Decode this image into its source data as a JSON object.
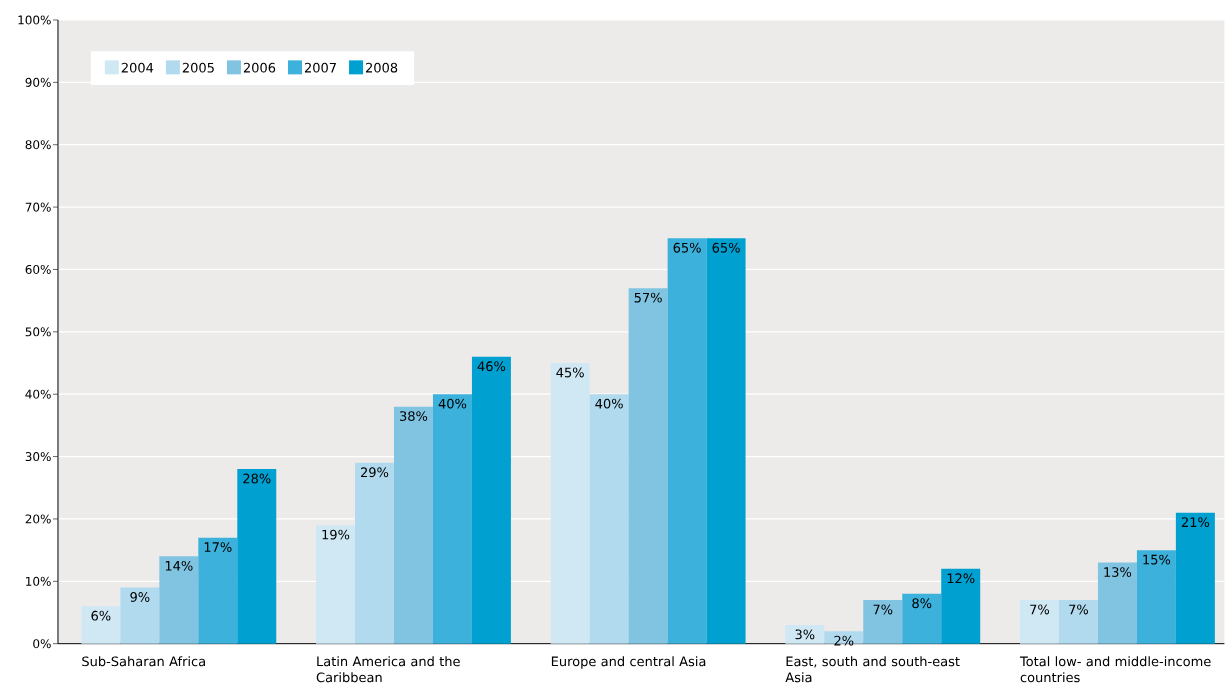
{
  "chart_data": {
    "type": "bar",
    "categories": [
      "Sub-Saharan Africa",
      "Latin America and the Caribbean",
      "Europe and central Asia",
      "East, south and south-east Asia",
      "Total low- and middle-income countries"
    ],
    "series": [
      {
        "name": "2004",
        "color": "#d0e7f4",
        "values": [
          6,
          19,
          45,
          3,
          7
        ],
        "value_labels": [
          "6%",
          "19%",
          "45%",
          "3%",
          "7%"
        ]
      },
      {
        "name": "2005",
        "color": "#b1daee",
        "values": [
          9,
          29,
          40,
          2,
          7
        ],
        "value_labels": [
          "9%",
          "29%",
          "40%",
          "2%",
          "7%"
        ]
      },
      {
        "name": "2006",
        "color": "#80c4e2",
        "values": [
          14,
          38,
          57,
          7,
          13
        ],
        "value_labels": [
          "14%",
          "38%",
          "57%",
          "7%",
          "13%"
        ]
      },
      {
        "name": "2007",
        "color": "#3bb1dc",
        "values": [
          17,
          40,
          65,
          8,
          15
        ],
        "value_labels": [
          "17%",
          "40%",
          "65%",
          "8%",
          "15%"
        ]
      },
      {
        "name": "2008",
        "color": "#00a0d1",
        "values": [
          28,
          46,
          65,
          12,
          21
        ],
        "value_labels": [
          "28%",
          "46%",
          "65%",
          "12%",
          "21%"
        ]
      }
    ],
    "ylim": [
      0,
      100
    ],
    "yticks": [
      {
        "value": 0,
        "label": "0%"
      },
      {
        "value": 10,
        "label": "10%"
      },
      {
        "value": 20,
        "label": "20%"
      },
      {
        "value": 30,
        "label": "30%"
      },
      {
        "value": 40,
        "label": "40%"
      },
      {
        "value": 50,
        "label": "50%"
      },
      {
        "value": 60,
        "label": "60%"
      },
      {
        "value": 70,
        "label": "70%"
      },
      {
        "value": 80,
        "label": "80%"
      },
      {
        "value": 90,
        "label": "90%"
      },
      {
        "value": 100,
        "label": "100%"
      }
    ],
    "grid": "y",
    "legend": "top left"
  }
}
